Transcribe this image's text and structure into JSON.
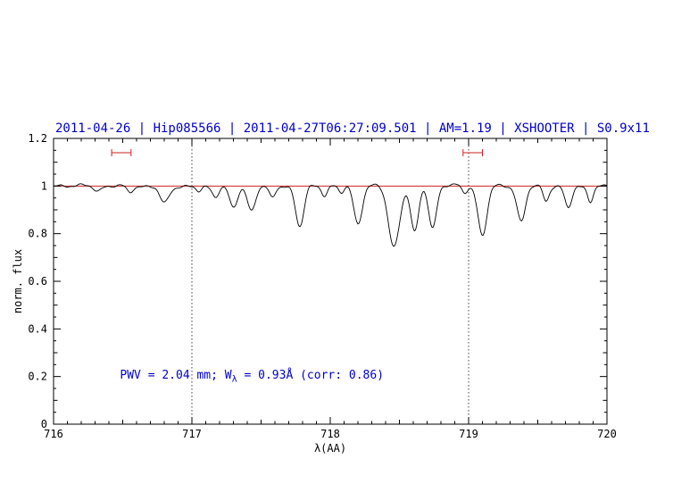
{
  "chart_data": {
    "type": "line",
    "title": "2011-04-26 | Hip085566 | 2011-04-27T06:27:09.501 | AM=1.19 | XSHOOTER | S0.9x11",
    "title_color": "#0000cc",
    "xlabel": "λ(AA)",
    "ylabel": "norm. flux",
    "xlim": [
      716,
      720
    ],
    "ylim": [
      0,
      1.2
    ],
    "x_ticks": [
      716,
      717,
      718,
      719,
      720
    ],
    "x_tick_labels": [
      "716",
      "717",
      "718",
      "719",
      "720"
    ],
    "x_minor_step": 0.1,
    "y_ticks": [
      0,
      0.2,
      0.4,
      0.6,
      0.8,
      1,
      1.2
    ],
    "y_tick_labels": [
      "0",
      "0.2",
      "0.4",
      "0.6",
      "0.8",
      "1",
      "1.2"
    ],
    "y_minor_step": 0.05,
    "grid": false,
    "legend": "none",
    "dotted_vlines": [
      717,
      719
    ],
    "vline_color": "#444444",
    "continuum": {
      "level": 1.0,
      "color": "#cc2222"
    },
    "spectrum_color": "#000000",
    "marker_color": "#cc2222",
    "range_markers": [
      {
        "x_start": 716.42,
        "x_end": 716.56,
        "y": 1.14
      },
      {
        "x_start": 718.96,
        "x_end": 719.1,
        "y": 1.14
      }
    ],
    "annotation": {
      "prefix": "PWV = 2.04 mm; W",
      "sub": "λ",
      "suffix": " = 0.93Å (corr: 0.86)",
      "color": "#0000cc",
      "x": 716.48,
      "y": 0.2
    },
    "absorption_lines": [
      {
        "center": 716.32,
        "depth": 0.02,
        "sigma": 0.025
      },
      {
        "center": 716.55,
        "depth": 0.025,
        "sigma": 0.02
      },
      {
        "center": 716.8,
        "depth": 0.07,
        "sigma": 0.032
      },
      {
        "center": 717.05,
        "depth": 0.02,
        "sigma": 0.02
      },
      {
        "center": 717.17,
        "depth": 0.04,
        "sigma": 0.022
      },
      {
        "center": 717.3,
        "depth": 0.09,
        "sigma": 0.028
      },
      {
        "center": 717.43,
        "depth": 0.1,
        "sigma": 0.028
      },
      {
        "center": 717.58,
        "depth": 0.05,
        "sigma": 0.022
      },
      {
        "center": 717.78,
        "depth": 0.17,
        "sigma": 0.03
      },
      {
        "center": 717.96,
        "depth": 0.04,
        "sigma": 0.02
      },
      {
        "center": 718.08,
        "depth": 0.03,
        "sigma": 0.02
      },
      {
        "center": 718.2,
        "depth": 0.16,
        "sigma": 0.03
      },
      {
        "center": 718.46,
        "depth": 0.26,
        "sigma": 0.04
      },
      {
        "center": 718.61,
        "depth": 0.2,
        "sigma": 0.028
      },
      {
        "center": 718.74,
        "depth": 0.18,
        "sigma": 0.028
      },
      {
        "center": 718.97,
        "depth": 0.03,
        "sigma": 0.02
      },
      {
        "center": 719.1,
        "depth": 0.21,
        "sigma": 0.032
      },
      {
        "center": 719.38,
        "depth": 0.15,
        "sigma": 0.03
      },
      {
        "center": 719.56,
        "depth": 0.06,
        "sigma": 0.02
      },
      {
        "center": 719.72,
        "depth": 0.09,
        "sigma": 0.025
      },
      {
        "center": 719.88,
        "depth": 0.06,
        "sigma": 0.02
      }
    ],
    "noise": [
      [
        0.004,
        41.7,
        0
      ],
      [
        0.003,
        23.3,
        2
      ],
      [
        0.002,
        91.1,
        1
      ],
      [
        0.003,
        2.1,
        0.5
      ]
    ],
    "sample_step": 0.008
  }
}
